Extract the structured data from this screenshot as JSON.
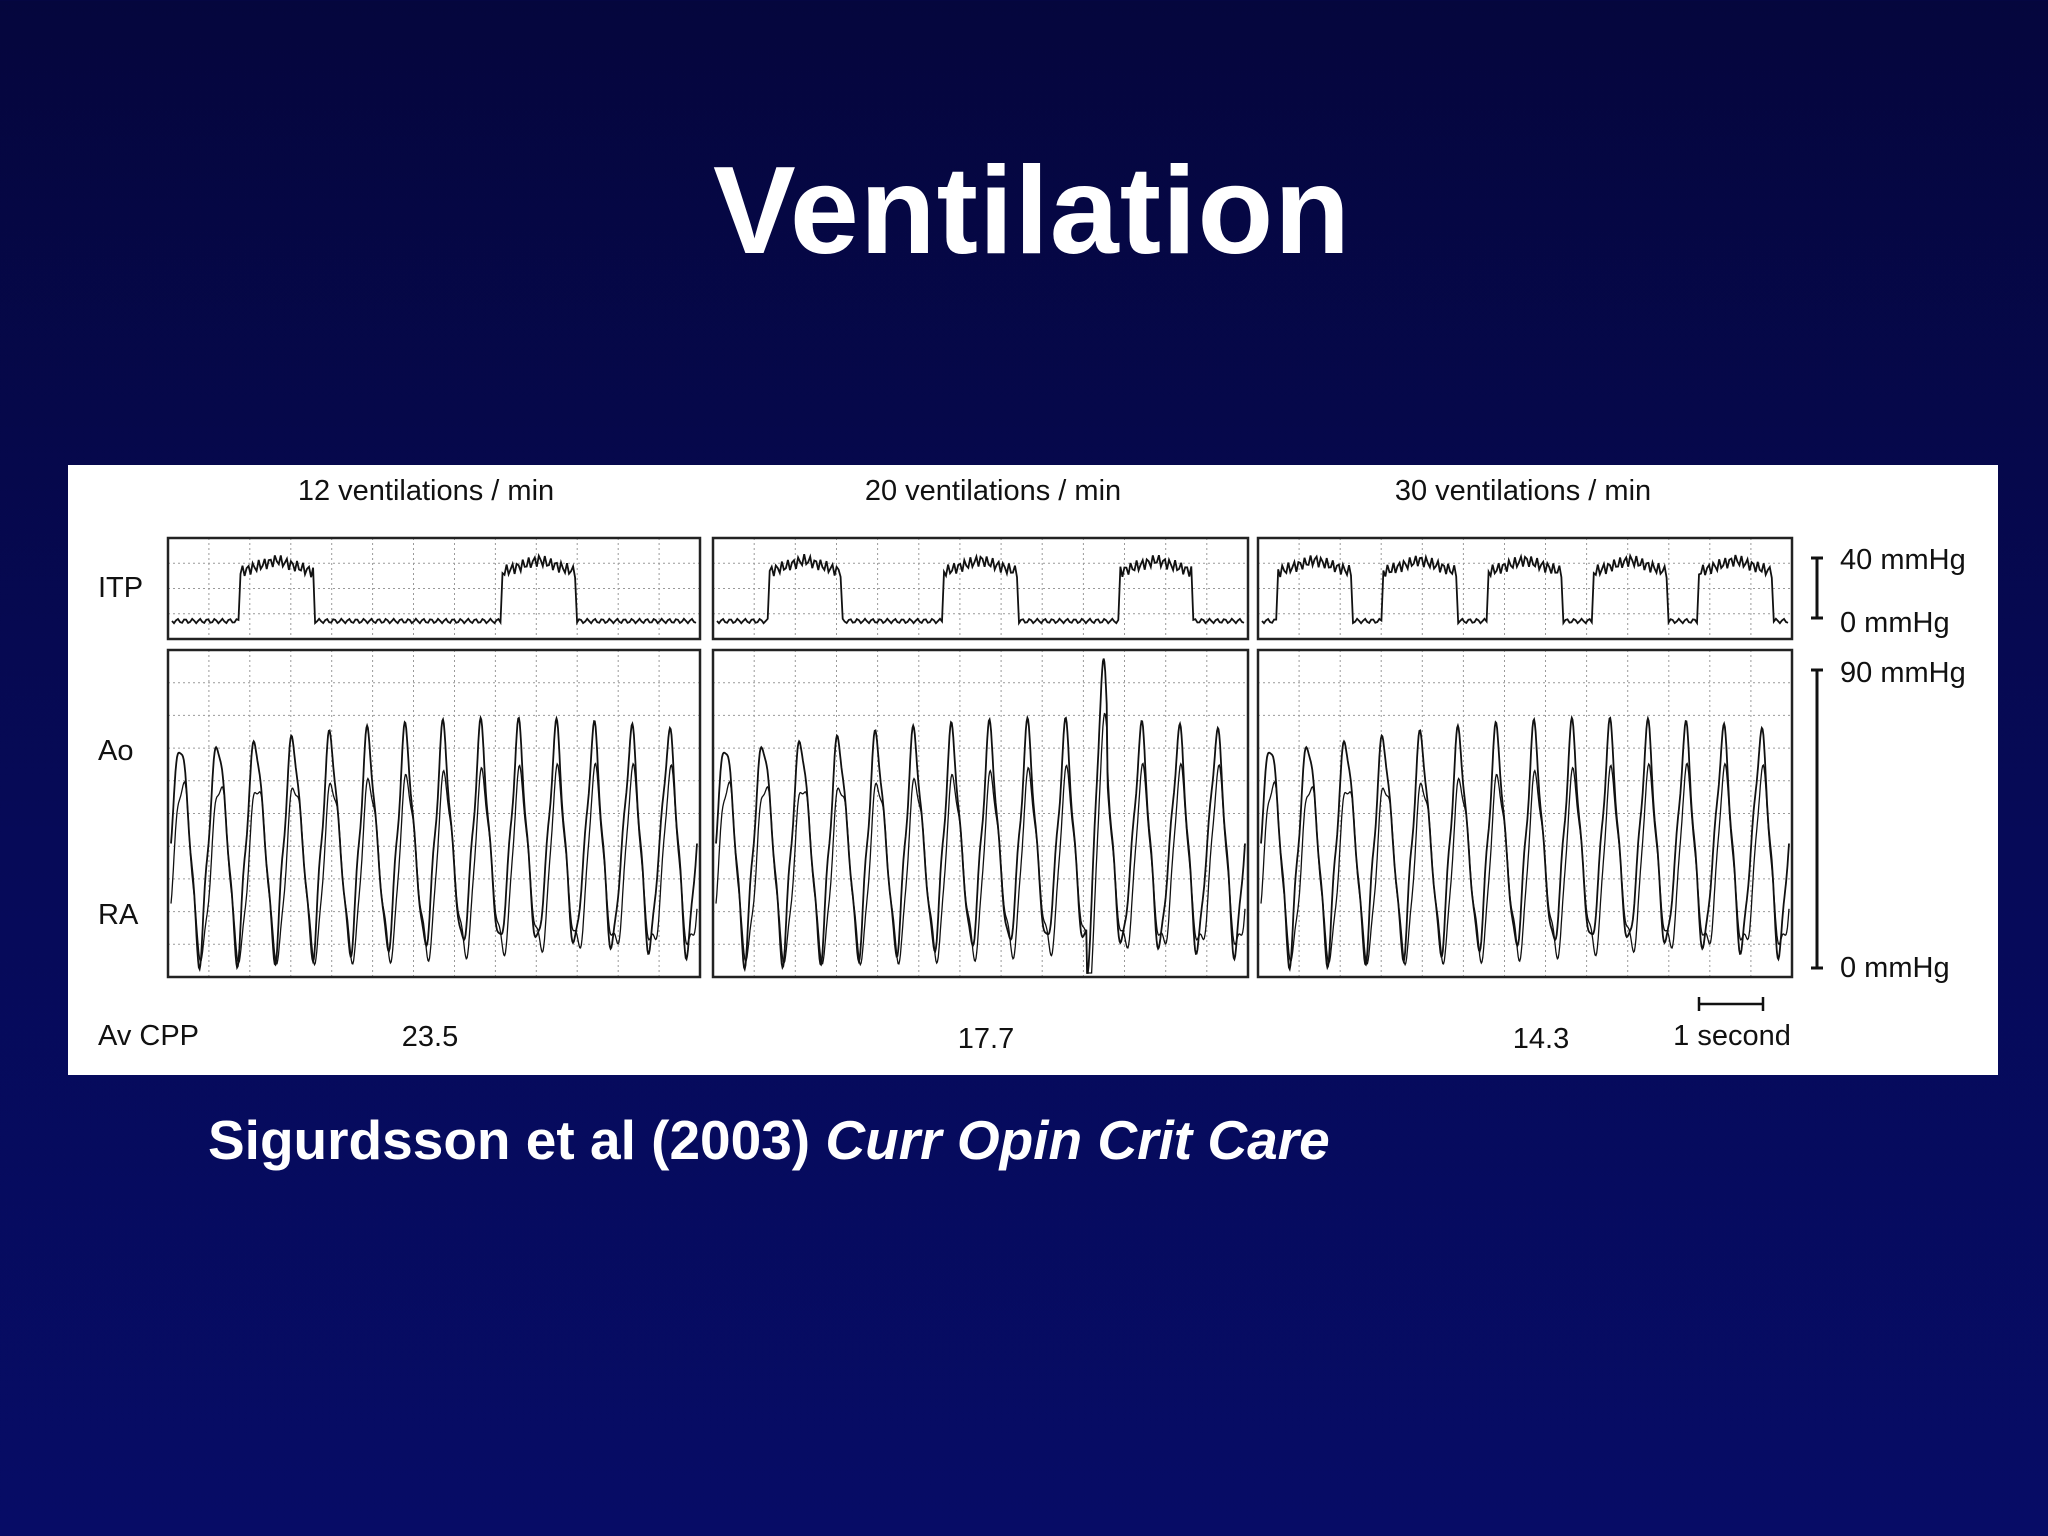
{
  "slide": {
    "title": "Ventilation",
    "citation_authors": "Sigurdsson et al (2003)",
    "citation_journal": "Curr Opin Crit Care"
  },
  "chart_data": {
    "type": "line",
    "panels": [
      {
        "label": "12 ventilations / min",
        "av_cpp": "23.5"
      },
      {
        "label": "20 ventilations / min",
        "av_cpp": "17.7"
      },
      {
        "label": "30 ventilations / min",
        "av_cpp": "14.3"
      }
    ],
    "row_labels": {
      "itp": "ITP",
      "ao": "Ao",
      "ra": "RA",
      "av_cpp": "Av CPP"
    },
    "itp_scale": {
      "top": "40 mmHg",
      "bottom": "0 mmHg"
    },
    "pressure_scale": {
      "top": "90 mmHg",
      "bottom": "0 mmHg"
    },
    "time_scale_label": "1 second",
    "ventilation_rates": [
      12,
      20,
      30
    ],
    "av_cpp_values": [
      23.5,
      17.7,
      14.3
    ],
    "itp_range_mmHg": [
      0,
      40
    ],
    "pressure_range_mmHg": [
      0,
      90
    ],
    "compressions_per_panel": 14,
    "breaths_per_panel": [
      2,
      3,
      5
    ]
  },
  "colors": {
    "trace": "#111111",
    "grid": "#9a9a9a",
    "frame": "#222222"
  }
}
